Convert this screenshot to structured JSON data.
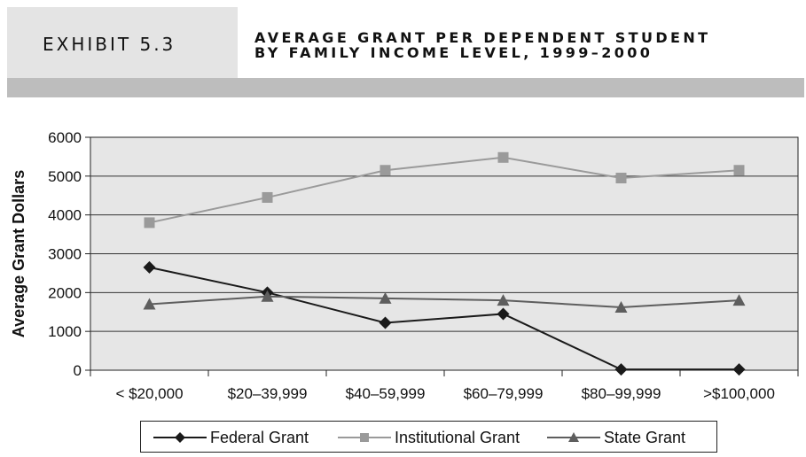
{
  "header": {
    "exhibit": "EXHIBIT 5.3",
    "title_line1": "AVERAGE GRANT PER DEPENDENT STUDENT",
    "title_line2": "BY FAMILY INCOME LEVEL, 1999–2000"
  },
  "colors": {
    "plot_bg": "#e6e6e6",
    "grid": "#333333",
    "federal": "#1a1a1a",
    "institutional": "#9a9a9a",
    "state": "#5e5e5e"
  },
  "chart_data": {
    "type": "line",
    "title": "AVERAGE GRANT PER DEPENDENT STUDENT BY FAMILY INCOME LEVEL, 1999–2000",
    "xlabel": "",
    "ylabel": "Average Grant Dollars",
    "ylim": [
      0,
      6000
    ],
    "yticks": [
      0,
      1000,
      2000,
      3000,
      4000,
      5000,
      6000
    ],
    "grid": true,
    "legend_position": "bottom",
    "categories": [
      "< $20,000",
      "$20–39,999",
      "$40–59,999",
      "$60–79,999",
      "$80–99,999",
      ">$100,000"
    ],
    "series": [
      {
        "name": "Federal Grant",
        "marker": "diamond",
        "color": "#1a1a1a",
        "values": [
          2650,
          2000,
          1220,
          1450,
          20,
          20
        ]
      },
      {
        "name": "Institutional Grant",
        "marker": "square",
        "color": "#9a9a9a",
        "values": [
          3800,
          4450,
          5150,
          5480,
          4950,
          5150
        ]
      },
      {
        "name": "State Grant",
        "marker": "triangle",
        "color": "#5e5e5e",
        "values": [
          1700,
          1900,
          1850,
          1800,
          1620,
          1800
        ]
      }
    ]
  }
}
